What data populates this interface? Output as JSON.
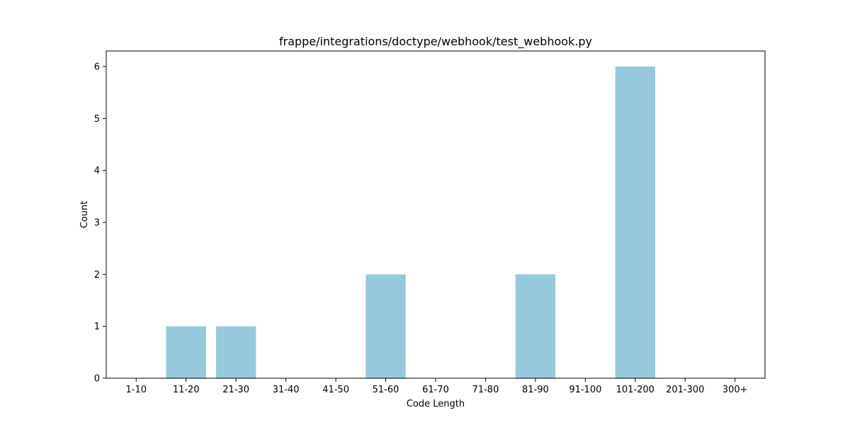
{
  "chart_data": {
    "type": "bar",
    "title": "frappe/integrations/doctype/webhook/test_webhook.py",
    "xlabel": "Code Length",
    "ylabel": "Count",
    "categories": [
      "1-10",
      "11-20",
      "21-30",
      "31-40",
      "41-50",
      "51-60",
      "61-70",
      "71-80",
      "81-90",
      "91-100",
      "101-200",
      "201-300",
      "300+"
    ],
    "values": [
      0,
      1,
      1,
      0,
      0,
      2,
      0,
      0,
      2,
      0,
      6,
      0,
      0
    ],
    "ylim": [
      0,
      6.3
    ],
    "yticks": [
      0,
      1,
      2,
      3,
      4,
      5,
      6
    ],
    "bar_color": "#96c9dc",
    "grid": false,
    "legend": "none"
  }
}
